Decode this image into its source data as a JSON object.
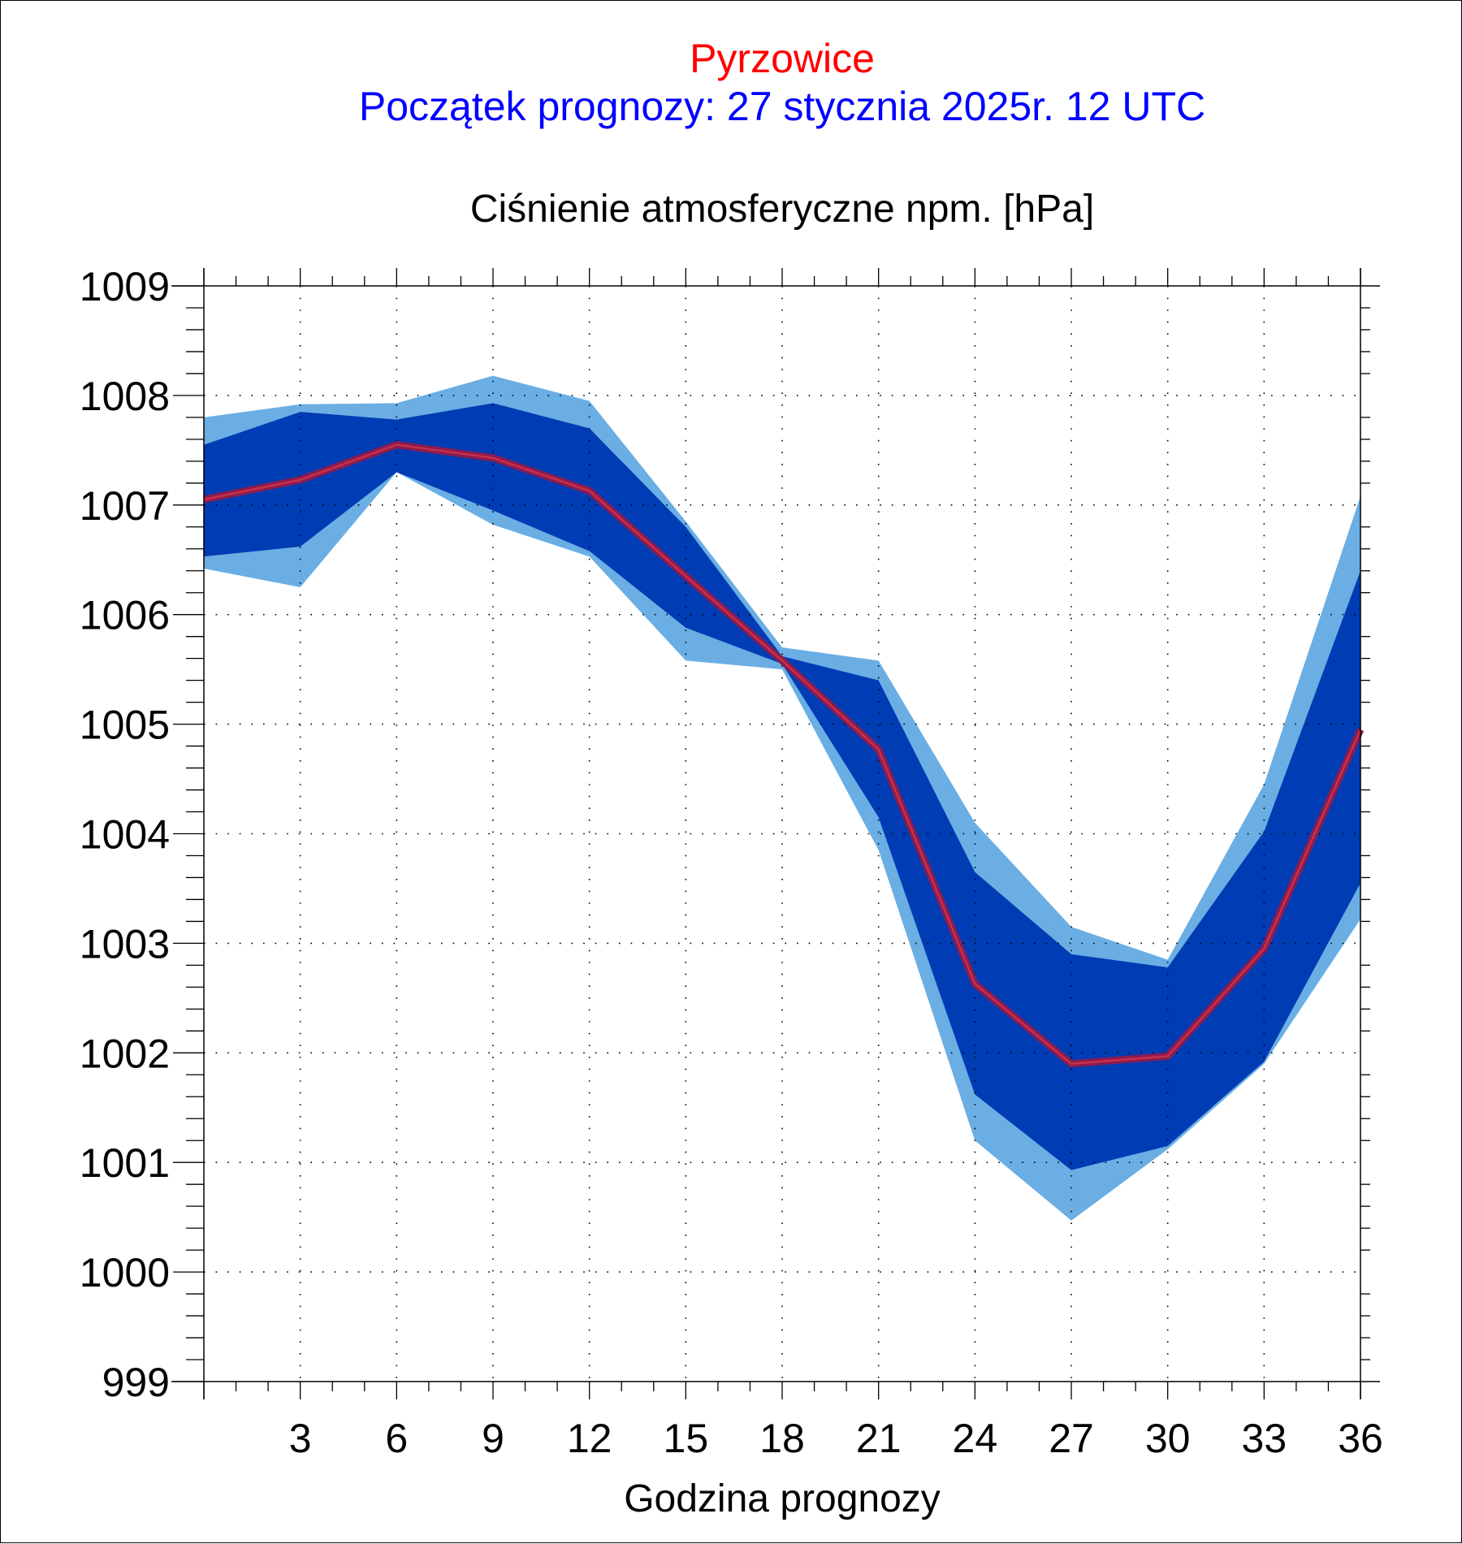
{
  "header": {
    "station": "Pyrzowice",
    "forecast_start": "Początek prognozy: 27 stycznia 2025r. 12 UTC",
    "variable": "Ciśnienie atmosferyczne npm. [hPa]"
  },
  "colors": {
    "outer_band": "#6aaee4",
    "inner_band": "#003cb4",
    "mean_line": "#8b1c50",
    "mean_line_core": "#c8304a",
    "station_title": "#ff0000",
    "start_title": "#0000ff"
  },
  "chart_data": {
    "type": "line",
    "title": "Ciśnienie atmosferyczne npm. [hPa]",
    "xlabel": "Godzina prognozy",
    "ylabel": "",
    "xlim": [
      0,
      36
    ],
    "ylim": [
      999,
      1009
    ],
    "grid": true,
    "x": [
      0,
      3,
      6,
      9,
      12,
      15,
      18,
      21,
      24,
      27,
      30,
      33,
      36
    ],
    "x_tick_labels": [
      "3",
      "6",
      "9",
      "12",
      "15",
      "18",
      "21",
      "24",
      "27",
      "30",
      "33",
      "36"
    ],
    "y_tick_labels": [
      "999",
      "1000",
      "1001",
      "1002",
      "1003",
      "1004",
      "1005",
      "1006",
      "1007",
      "1008",
      "1009"
    ],
    "series": [
      {
        "role": "outer_band_upper",
        "values": [
          1007.8,
          1007.92,
          1007.93,
          1008.18,
          1007.95,
          1006.85,
          1005.7,
          1005.58,
          1004.1,
          1003.15,
          1002.85,
          1004.45,
          1007.08
        ]
      },
      {
        "role": "inner_band_upper",
        "values": [
          1007.55,
          1007.85,
          1007.78,
          1007.93,
          1007.7,
          1006.8,
          1005.62,
          1005.4,
          1003.65,
          1002.9,
          1002.78,
          1004.02,
          1006.4
        ]
      },
      {
        "role": "mean",
        "values": [
          1007.05,
          1007.23,
          1007.55,
          1007.43,
          1007.13,
          1006.35,
          1005.58,
          1004.77,
          1002.63,
          1001.9,
          1001.97,
          1002.95,
          1004.95
        ]
      },
      {
        "role": "inner_band_lower",
        "values": [
          1006.53,
          1006.62,
          1007.3,
          1006.95,
          1006.58,
          1005.88,
          1005.55,
          1004.15,
          1001.62,
          1000.93,
          1001.15,
          1001.92,
          1003.55
        ]
      },
      {
        "role": "outer_band_lower",
        "values": [
          1006.42,
          1006.25,
          1007.3,
          1006.82,
          1006.53,
          1005.58,
          1005.5,
          1003.85,
          1001.2,
          1000.47,
          1001.12,
          1001.9,
          1003.22
        ]
      }
    ]
  }
}
